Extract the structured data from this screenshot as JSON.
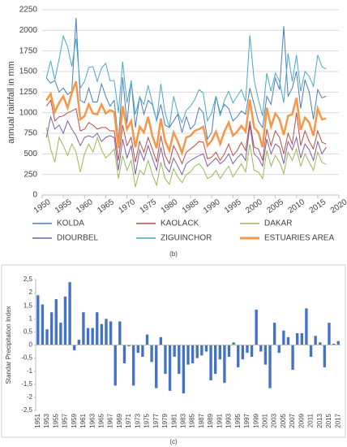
{
  "chart_data": [
    {
      "type": "line",
      "ylabel": "annual rainfall in mm",
      "caption": "(b)",
      "x": [
        1951,
        1952,
        1953,
        1954,
        1955,
        1956,
        1957,
        1958,
        1959,
        1960,
        1961,
        1962,
        1963,
        1964,
        1965,
        1966,
        1967,
        1968,
        1969,
        1970,
        1971,
        1972,
        1973,
        1974,
        1975,
        1976,
        1977,
        1978,
        1979,
        1980,
        1981,
        1982,
        1983,
        1984,
        1985,
        1986,
        1987,
        1988,
        1989,
        1990,
        1991,
        1992,
        1993,
        1994,
        1995,
        1996,
        1997,
        1998,
        1999,
        2000,
        2001,
        2002,
        2003,
        2004,
        2005,
        2006,
        2007,
        2008,
        2009,
        2010,
        2011,
        2012,
        2013,
        2014,
        2015,
        2016,
        2017
      ],
      "xlim": [
        1950,
        2020
      ],
      "xticks": [
        1950,
        1955,
        1960,
        1965,
        1970,
        1975,
        1980,
        1985,
        1990,
        1995,
        2000,
        2005,
        2010,
        2015,
        2020
      ],
      "ylim": [
        0,
        2250
      ],
      "yticks": [
        0,
        250,
        500,
        750,
        1000,
        1250,
        1500,
        1750,
        2000,
        2250
      ],
      "grid": true,
      "legend": "bottom",
      "series": [
        {
          "name": "KOLDA",
          "color": "#4a7ebb",
          "width": 1,
          "values": [
            1420,
            1360,
            1390,
            1250,
            1300,
            1220,
            1260,
            2150,
            1150,
            1120,
            1300,
            1130,
            1130,
            1350,
            1200,
            1080,
            1150,
            650,
            1430,
            870,
            1390,
            820,
            1200,
            980,
            1150,
            1100,
            900,
            1100,
            850,
            820,
            900,
            980,
            760,
            950,
            800,
            860,
            1060,
            1000,
            680,
            760,
            1200,
            1000,
            1100,
            1050,
            900,
            950,
            1020,
            980,
            1300,
            1100,
            900,
            820,
            1200,
            1100,
            1420,
            1280,
            2050,
            1200,
            1300,
            1500,
            1050,
            1400,
            1250,
            920,
            1280,
            1180,
            1200
          ]
        },
        {
          "name": "KAOLACK",
          "color": "#be4b48",
          "width": 1,
          "values": [
            1080,
            1150,
            900,
            950,
            960,
            1000,
            1020,
            1050,
            780,
            800,
            880,
            850,
            800,
            820,
            820,
            780,
            780,
            420,
            850,
            600,
            700,
            400,
            650,
            520,
            700,
            560,
            400,
            720,
            480,
            380,
            600,
            500,
            380,
            520,
            560,
            600,
            650,
            640,
            440,
            460,
            520,
            420,
            500,
            620,
            480,
            540,
            640,
            540,
            900,
            580,
            560,
            420,
            800,
            600,
            780,
            700,
            500,
            750,
            620,
            1000,
            600,
            780,
            650,
            560,
            780,
            640,
            620
          ]
        },
        {
          "name": "DAKAR",
          "color": "#98b954",
          "width": 1,
          "values": [
            820,
            560,
            400,
            700,
            600,
            480,
            620,
            520,
            280,
            500,
            620,
            520,
            700,
            550,
            450,
            500,
            560,
            200,
            480,
            300,
            420,
            100,
            300,
            250,
            420,
            250,
            120,
            400,
            200,
            130,
            320,
            220,
            150,
            250,
            280,
            350,
            380,
            320,
            200,
            230,
            300,
            200,
            280,
            350,
            220,
            300,
            380,
            280,
            620,
            300,
            280,
            200,
            540,
            350,
            480,
            400,
            260,
            520,
            420,
            560,
            350,
            500,
            400,
            300,
            520,
            400,
            370
          ]
        },
        {
          "name": "DIOURBEL",
          "color": "#7d5fa0",
          "width": 1,
          "values": [
            700,
            950,
            800,
            850,
            750,
            900,
            800,
            720,
            600,
            700,
            720,
            700,
            750,
            650,
            700,
            720,
            700,
            300,
            680,
            450,
            600,
            250,
            550,
            420,
            600,
            450,
            300,
            580,
            350,
            280,
            450,
            350,
            250,
            380,
            420,
            450,
            480,
            500,
            350,
            400,
            450,
            380,
            420,
            500,
            380,
            450,
            500,
            420,
            850,
            500,
            450,
            350,
            680,
            500,
            620,
            580,
            380,
            650,
            550,
            700,
            450,
            620,
            550,
            420,
            650,
            500,
            580
          ]
        },
        {
          "name": "ZIGUINCHOR",
          "color": "#46aac5",
          "width": 1,
          "values": [
            1420,
            1630,
            1400,
            1650,
            1930,
            1800,
            1560,
            1900,
            1300,
            1380,
            1550,
            1560,
            1380,
            1540,
            1600,
            1390,
            1390,
            1000,
            1620,
            1120,
            1380,
            980,
            1190,
            1100,
            1330,
            1120,
            900,
            1350,
            1000,
            820,
            1200,
            1000,
            880,
            1030,
            1080,
            1160,
            1280,
            1240,
            900,
            1000,
            1200,
            960,
            1150,
            1260,
            1120,
            1200,
            1280,
            1140,
            1940,
            1400,
            1160,
            960,
            1480,
            1260,
            1480,
            1380,
            1120,
            1720,
            1380,
            1700,
            1260,
            1500,
            1440,
            1320,
            1700,
            1560,
            1530
          ]
        },
        {
          "name": "ESTUARIES AREA",
          "color": "#f79646",
          "width": 2.5,
          "values": [
            1150,
            1230,
            1010,
            1120,
            1200,
            1060,
            1240,
            1380,
            920,
            960,
            1100,
            990,
            980,
            1100,
            990,
            1030,
            1010,
            570,
            1080,
            800,
            900,
            580,
            830,
            760,
            950,
            720,
            570,
            930,
            660,
            540,
            760,
            650,
            510,
            700,
            720,
            780,
            800,
            830,
            600,
            660,
            770,
            620,
            770,
            880,
            720,
            770,
            840,
            770,
            1160,
            820,
            760,
            580,
            1060,
            830,
            990,
            920,
            730,
            960,
            980,
            1180,
            790,
            940,
            880,
            720,
            1050,
            920,
            930
          ]
        }
      ]
    },
    {
      "type": "bar",
      "ylabel": "Standar Precipitation Index",
      "caption": "(c)",
      "color": "#4472c4",
      "grid": false,
      "categories": [
        "1951",
        null,
        "1953",
        null,
        "1955",
        null,
        "1957",
        null,
        "1959",
        null,
        "1961",
        null,
        "1963",
        null,
        "1965",
        null,
        "1967",
        null,
        "1969",
        null,
        "1971",
        null,
        "1973",
        null,
        "1975",
        null,
        "1977",
        null,
        "1979",
        null,
        "1981",
        null,
        "1983",
        null,
        "1985",
        null,
        "1987",
        null,
        "1989",
        null,
        "1991",
        null,
        "1993",
        null,
        "1995",
        null,
        "1997",
        null,
        "1999",
        null,
        "2001",
        null,
        "2003",
        null,
        "2005",
        null,
        "2007",
        null,
        "2009",
        null,
        "2011",
        null,
        "2013",
        null,
        "2015",
        null,
        "2017"
      ],
      "values": [
        1.9,
        1.55,
        0.6,
        1.25,
        1.75,
        0.85,
        1.85,
        2.4,
        -0.2,
        0.2,
        1.25,
        0.65,
        0.65,
        1.25,
        0.8,
        1.0,
        0.9,
        -1.55,
        0.9,
        -0.7,
        -0.05,
        -1.55,
        -0.3,
        -0.45,
        0.4,
        -0.65,
        -1.65,
        0.3,
        -1.1,
        -1.75,
        -0.45,
        -1.1,
        -1.85,
        -0.75,
        -0.7,
        -0.5,
        -0.4,
        -0.25,
        -1.35,
        -1.1,
        -0.55,
        -1.45,
        -0.45,
        0.1,
        -0.85,
        -0.55,
        -0.3,
        -0.45,
        1.35,
        -0.25,
        -0.75,
        -1.65,
        0.85,
        -0.3,
        0.55,
        0.3,
        -0.95,
        0.45,
        0.45,
        1.4,
        -0.45,
        0.35,
        0.1,
        -0.85,
        0.85,
        0.05,
        0.15
      ],
      "ylim": [
        -2.5,
        2.5
      ],
      "yticks": [
        {
          "value": 2.5,
          "label": "2,5"
        },
        2,
        {
          "value": 1.5,
          "label": "1,5"
        },
        1,
        {
          "value": 0.5,
          "label": "0,5"
        },
        0,
        {
          "value": -0.5,
          "label": "-0,5"
        },
        -1,
        {
          "value": -1.5,
          "label": "-1,5"
        },
        -2,
        {
          "value": -2.5,
          "label": "-2,5"
        }
      ]
    }
  ]
}
